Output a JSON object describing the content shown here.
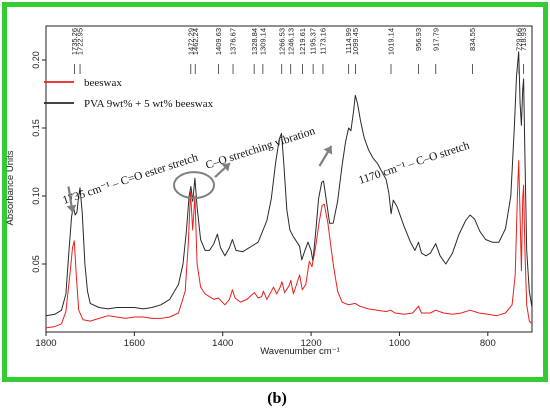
{
  "figure_label": "(b)",
  "colors": {
    "frame": "#33cc33",
    "beeswax": "#e8211e",
    "blend": "#2a2a2a",
    "annotation_arrow": "#808080"
  },
  "chart_data": {
    "type": "line",
    "xlabel": "Wavenumber cm⁻¹",
    "ylabel": "Absorbance Units",
    "xlim": [
      1800,
      700
    ],
    "ylim": [
      0.0,
      0.225
    ],
    "x_reversed": true,
    "grid": false,
    "legend_position": "top-left",
    "xticks": [
      1800,
      1600,
      1400,
      1200,
      1000,
      800
    ],
    "xtick_labels": [
      "1800",
      "1600",
      "1400",
      "1200",
      "1000",
      "800"
    ],
    "yticks": [
      0.05,
      0.1,
      0.15,
      0.2
    ],
    "ytick_labels": [
      "0.05",
      "0.10",
      "0.15",
      "0.20"
    ],
    "peak_labels": [
      {
        "x": 1735.26,
        "label": "1735.26"
      },
      {
        "x": 1722.95,
        "label": "1722.95"
      },
      {
        "x": 1472.29,
        "label": "1472.29"
      },
      {
        "x": 1462.24,
        "label": "1462.24"
      },
      {
        "x": 1409.63,
        "label": "1409.63"
      },
      {
        "x": 1376.67,
        "label": "1376.67"
      },
      {
        "x": 1328.84,
        "label": "1328.84"
      },
      {
        "x": 1309.14,
        "label": "1309.14"
      },
      {
        "x": 1266.53,
        "label": "1266.53"
      },
      {
        "x": 1246.13,
        "label": "1246.13"
      },
      {
        "x": 1219.61,
        "label": "1219.61"
      },
      {
        "x": 1195.37,
        "label": "1195.37"
      },
      {
        "x": 1173.16,
        "label": "1173.16"
      },
      {
        "x": 1114.99,
        "label": "1114.99"
      },
      {
        "x": 1099.45,
        "label": "1099.45"
      },
      {
        "x": 1019.14,
        "label": "1019.14"
      },
      {
        "x": 956.93,
        "label": "956.93"
      },
      {
        "x": 917.79,
        "label": "917.79"
      },
      {
        "x": 834.55,
        "label": "834.55"
      },
      {
        "x": 729.66,
        "label": "729.66"
      },
      {
        "x": 718.93,
        "label": "718.93"
      }
    ],
    "annotations": [
      {
        "text": "1735 cm⁻¹ – C=O ester stretch",
        "arrow_to": [
          1740,
          0.085
        ]
      },
      {
        "text": "C–O stretching vibration",
        "ellipse_center": [
          1465,
          0.108
        ]
      },
      {
        "text": "1170 cm⁻¹ – C–O stretch",
        "arrow_to": [
          1172,
          0.125
        ]
      }
    ],
    "series": [
      {
        "name": "beeswax",
        "color": "#e8211e",
        "points": [
          [
            1800,
            0.003
          ],
          [
            1780,
            0.004
          ],
          [
            1765,
            0.006
          ],
          [
            1755,
            0.015
          ],
          [
            1745,
            0.045
          ],
          [
            1740,
            0.062
          ],
          [
            1736,
            0.067
          ],
          [
            1732,
            0.045
          ],
          [
            1726,
            0.016
          ],
          [
            1716,
            0.009
          ],
          [
            1700,
            0.008
          ],
          [
            1680,
            0.01
          ],
          [
            1660,
            0.012
          ],
          [
            1640,
            0.011
          ],
          [
            1620,
            0.01
          ],
          [
            1600,
            0.011
          ],
          [
            1580,
            0.011
          ],
          [
            1560,
            0.01
          ],
          [
            1540,
            0.01
          ],
          [
            1520,
            0.011
          ],
          [
            1500,
            0.014
          ],
          [
            1485,
            0.03
          ],
          [
            1478,
            0.065
          ],
          [
            1473,
            0.103
          ],
          [
            1468,
            0.075
          ],
          [
            1463,
            0.1
          ],
          [
            1458,
            0.05
          ],
          [
            1450,
            0.033
          ],
          [
            1440,
            0.028
          ],
          [
            1420,
            0.024
          ],
          [
            1410,
            0.025
          ],
          [
            1395,
            0.02
          ],
          [
            1385,
            0.024
          ],
          [
            1378,
            0.031
          ],
          [
            1372,
            0.025
          ],
          [
            1360,
            0.022
          ],
          [
            1345,
            0.024
          ],
          [
            1335,
            0.027
          ],
          [
            1328,
            0.029
          ],
          [
            1320,
            0.025
          ],
          [
            1312,
            0.026
          ],
          [
            1308,
            0.03
          ],
          [
            1300,
            0.024
          ],
          [
            1290,
            0.03
          ],
          [
            1285,
            0.033
          ],
          [
            1278,
            0.028
          ],
          [
            1270,
            0.033
          ],
          [
            1266,
            0.037
          ],
          [
            1260,
            0.029
          ],
          [
            1250,
            0.034
          ],
          [
            1246,
            0.038
          ],
          [
            1240,
            0.028
          ],
          [
            1232,
            0.036
          ],
          [
            1226,
            0.042
          ],
          [
            1220,
            0.031
          ],
          [
            1212,
            0.035
          ],
          [
            1204,
            0.052
          ],
          [
            1198,
            0.048
          ],
          [
            1190,
            0.062
          ],
          [
            1182,
            0.08
          ],
          [
            1175,
            0.093
          ],
          [
            1170,
            0.094
          ],
          [
            1162,
            0.08
          ],
          [
            1150,
            0.05
          ],
          [
            1140,
            0.03
          ],
          [
            1130,
            0.022
          ],
          [
            1115,
            0.02
          ],
          [
            1100,
            0.021
          ],
          [
            1090,
            0.019
          ],
          [
            1070,
            0.017
          ],
          [
            1050,
            0.016
          ],
          [
            1030,
            0.015
          ],
          [
            1020,
            0.016
          ],
          [
            1010,
            0.014
          ],
          [
            990,
            0.013
          ],
          [
            970,
            0.014
          ],
          [
            957,
            0.019
          ],
          [
            950,
            0.014
          ],
          [
            930,
            0.014
          ],
          [
            918,
            0.016
          ],
          [
            900,
            0.014
          ],
          [
            880,
            0.013
          ],
          [
            860,
            0.014
          ],
          [
            840,
            0.016
          ],
          [
            820,
            0.014
          ],
          [
            800,
            0.013
          ],
          [
            780,
            0.012
          ],
          [
            760,
            0.014
          ],
          [
            745,
            0.02
          ],
          [
            738,
            0.042
          ],
          [
            733,
            0.1
          ],
          [
            730,
            0.126
          ],
          [
            727,
            0.085
          ],
          [
            724,
            0.045
          ],
          [
            721,
            0.098
          ],
          [
            719,
            0.108
          ],
          [
            716,
            0.06
          ],
          [
            712,
            0.02
          ],
          [
            706,
            0.008
          ],
          [
            700,
            0.006
          ]
        ]
      },
      {
        "name": "PVA 9wt% + 5 wt% beeswax",
        "color": "#2a2a2a",
        "points": [
          [
            1800,
            0.012
          ],
          [
            1780,
            0.013
          ],
          [
            1765,
            0.016
          ],
          [
            1755,
            0.028
          ],
          [
            1748,
            0.06
          ],
          [
            1742,
            0.085
          ],
          [
            1738,
            0.092
          ],
          [
            1734,
            0.086
          ],
          [
            1730,
            0.088
          ],
          [
            1726,
            0.1
          ],
          [
            1723,
            0.106
          ],
          [
            1718,
            0.088
          ],
          [
            1712,
            0.05
          ],
          [
            1706,
            0.03
          ],
          [
            1700,
            0.021
          ],
          [
            1680,
            0.018
          ],
          [
            1660,
            0.017
          ],
          [
            1640,
            0.018
          ],
          [
            1620,
            0.018
          ],
          [
            1600,
            0.018
          ],
          [
            1580,
            0.017
          ],
          [
            1560,
            0.018
          ],
          [
            1540,
            0.02
          ],
          [
            1520,
            0.024
          ],
          [
            1500,
            0.035
          ],
          [
            1490,
            0.05
          ],
          [
            1482,
            0.075
          ],
          [
            1476,
            0.1
          ],
          [
            1472,
            0.107
          ],
          [
            1468,
            0.096
          ],
          [
            1463,
            0.113
          ],
          [
            1458,
            0.092
          ],
          [
            1450,
            0.068
          ],
          [
            1440,
            0.06
          ],
          [
            1430,
            0.06
          ],
          [
            1420,
            0.065
          ],
          [
            1412,
            0.072
          ],
          [
            1405,
            0.062
          ],
          [
            1395,
            0.056
          ],
          [
            1385,
            0.062
          ],
          [
            1378,
            0.068
          ],
          [
            1370,
            0.06
          ],
          [
            1355,
            0.059
          ],
          [
            1340,
            0.062
          ],
          [
            1330,
            0.064
          ],
          [
            1320,
            0.066
          ],
          [
            1310,
            0.074
          ],
          [
            1300,
            0.082
          ],
          [
            1290,
            0.098
          ],
          [
            1280,
            0.125
          ],
          [
            1272,
            0.142
          ],
          [
            1267,
            0.146
          ],
          [
            1262,
            0.125
          ],
          [
            1255,
            0.09
          ],
          [
            1248,
            0.075
          ],
          [
            1240,
            0.07
          ],
          [
            1232,
            0.066
          ],
          [
            1226,
            0.063
          ],
          [
            1221,
            0.053
          ],
          [
            1214,
            0.06
          ],
          [
            1207,
            0.066
          ],
          [
            1200,
            0.06
          ],
          [
            1196,
            0.052
          ],
          [
            1190,
            0.072
          ],
          [
            1183,
            0.098
          ],
          [
            1176,
            0.11
          ],
          [
            1172,
            0.111
          ],
          [
            1166,
            0.098
          ],
          [
            1158,
            0.08
          ],
          [
            1150,
            0.08
          ],
          [
            1140,
            0.096
          ],
          [
            1130,
            0.122
          ],
          [
            1122,
            0.14
          ],
          [
            1115,
            0.15
          ],
          [
            1110,
            0.148
          ],
          [
            1104,
            0.162
          ],
          [
            1100,
            0.174
          ],
          [
            1095,
            0.168
          ],
          [
            1088,
            0.155
          ],
          [
            1080,
            0.143
          ],
          [
            1070,
            0.134
          ],
          [
            1060,
            0.128
          ],
          [
            1050,
            0.124
          ],
          [
            1040,
            0.118
          ],
          [
            1030,
            0.112
          ],
          [
            1024,
            0.102
          ],
          [
            1019,
            0.087
          ],
          [
            1014,
            0.097
          ],
          [
            1005,
            0.092
          ],
          [
            990,
            0.078
          ],
          [
            975,
            0.066
          ],
          [
            965,
            0.06
          ],
          [
            957,
            0.066
          ],
          [
            950,
            0.058
          ],
          [
            940,
            0.056
          ],
          [
            930,
            0.058
          ],
          [
            918,
            0.065
          ],
          [
            908,
            0.056
          ],
          [
            895,
            0.05
          ],
          [
            880,
            0.058
          ],
          [
            865,
            0.072
          ],
          [
            850,
            0.082
          ],
          [
            840,
            0.086
          ],
          [
            830,
            0.083
          ],
          [
            818,
            0.074
          ],
          [
            805,
            0.068
          ],
          [
            790,
            0.066
          ],
          [
            775,
            0.066
          ],
          [
            760,
            0.076
          ],
          [
            748,
            0.1
          ],
          [
            740,
            0.15
          ],
          [
            735,
            0.188
          ],
          [
            730,
            0.206
          ],
          [
            727,
            0.168
          ],
          [
            724,
            0.152
          ],
          [
            721,
            0.178
          ],
          [
            719,
            0.186
          ],
          [
            716,
            0.13
          ],
          [
            712,
            0.06
          ],
          [
            706,
            0.03
          ],
          [
            700,
            0.018
          ]
        ]
      }
    ]
  }
}
